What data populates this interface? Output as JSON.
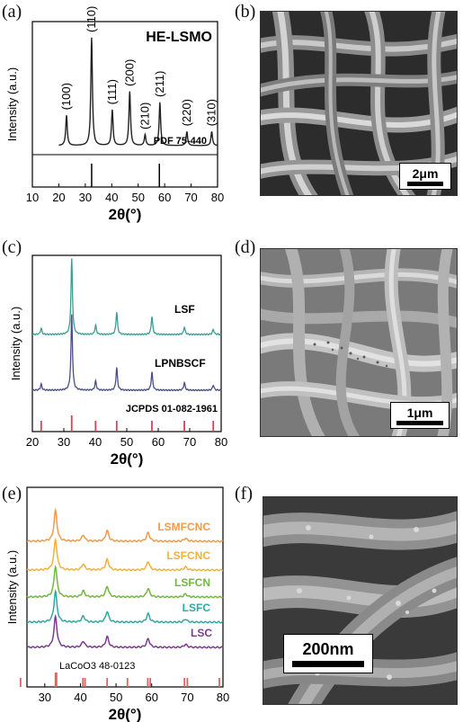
{
  "panels": {
    "a": {
      "letter": "(a)"
    },
    "b": {
      "letter": "(b)",
      "scale": "2μm"
    },
    "c": {
      "letter": "(c)"
    },
    "d": {
      "letter": "(d)",
      "scale": "1μm"
    },
    "e": {
      "letter": "(e)"
    },
    "f": {
      "letter": "(f)",
      "scale": "200nm"
    }
  },
  "chart_data": [
    {
      "id": "a",
      "type": "line",
      "title": "HE-LSMO",
      "xlabel": "2θ(°)",
      "ylabel": "Intensity (a.u.)",
      "xlim": [
        10,
        80
      ],
      "xticks": [
        10,
        20,
        30,
        40,
        50,
        60,
        70,
        80
      ],
      "reference_label": "PDF 75-440",
      "reference_lines": [
        32.4,
        58.0
      ],
      "peaks": [
        {
          "x": 22.9,
          "h": 0.28,
          "label": "(100)"
        },
        {
          "x": 32.4,
          "h": 1.0,
          "label": "(110)"
        },
        {
          "x": 40.2,
          "h": 0.33,
          "label": "(111)"
        },
        {
          "x": 46.8,
          "h": 0.5,
          "label": "(200)"
        },
        {
          "x": 52.6,
          "h": 0.1,
          "label": "(210)"
        },
        {
          "x": 58.2,
          "h": 0.4,
          "label": "(211)"
        },
        {
          "x": 68.4,
          "h": 0.13,
          "label": "(220)"
        },
        {
          "x": 77.8,
          "h": 0.13,
          "label": "(310)"
        }
      ],
      "colors": {
        "line": "#222222"
      }
    },
    {
      "id": "c",
      "type": "line",
      "xlabel": "2θ(°)",
      "ylabel": "Intensity (a.u.)",
      "xlim": [
        20,
        80
      ],
      "xticks": [
        20,
        30,
        40,
        50,
        60,
        70,
        80
      ],
      "reference_label": "JCPDS 01-082-1961",
      "reference_lines": [
        22.8,
        32.5,
        40.1,
        46.8,
        58.0,
        68.3,
        77.5
      ],
      "series": [
        {
          "name": "LSF",
          "color": "#3a9e96",
          "peaks": [
            {
              "x": 22.8,
              "h": 0.08
            },
            {
              "x": 32.5,
              "h": 1.0
            },
            {
              "x": 40.1,
              "h": 0.12
            },
            {
              "x": 46.8,
              "h": 0.3
            },
            {
              "x": 58.0,
              "h": 0.24
            },
            {
              "x": 68.3,
              "h": 0.1
            },
            {
              "x": 77.5,
              "h": 0.07
            }
          ]
        },
        {
          "name": "LPNBSCF",
          "color": "#4a4e86",
          "peaks": [
            {
              "x": 22.8,
              "h": 0.08
            },
            {
              "x": 32.5,
              "h": 1.0
            },
            {
              "x": 40.1,
              "h": 0.12
            },
            {
              "x": 46.8,
              "h": 0.3
            },
            {
              "x": 58.0,
              "h": 0.24
            },
            {
              "x": 68.3,
              "h": 0.1
            },
            {
              "x": 77.5,
              "h": 0.07
            }
          ]
        }
      ],
      "colors": {
        "reference": "#d9405a"
      }
    },
    {
      "id": "e",
      "type": "line",
      "xlabel": "2θ(°)",
      "ylabel": "Intensity (a.u.)",
      "xlim": [
        25,
        80
      ],
      "xticks": [
        30,
        40,
        50,
        60,
        70,
        80
      ],
      "reference_label": "LaCoO3 48-0123",
      "reference_lines": [
        23.2,
        33.0,
        33.3,
        40.7,
        41.3,
        47.5,
        53.2,
        58.9,
        59.6,
        69.2,
        70.0,
        79.0
      ],
      "series": [
        {
          "name": "LSMFCNC",
          "color": "#f29a4a",
          "peaks": [
            {
              "x": 33.0,
              "h": 1.0
            },
            {
              "x": 40.8,
              "h": 0.2
            },
            {
              "x": 47.5,
              "h": 0.35
            },
            {
              "x": 59.0,
              "h": 0.28
            },
            {
              "x": 69.5,
              "h": 0.1
            }
          ]
        },
        {
          "name": "LSFCNC",
          "color": "#f2b23a",
          "peaks": [
            {
              "x": 33.0,
              "h": 1.0
            },
            {
              "x": 40.8,
              "h": 0.2
            },
            {
              "x": 47.5,
              "h": 0.35
            },
            {
              "x": 59.0,
              "h": 0.28
            },
            {
              "x": 69.5,
              "h": 0.1
            }
          ]
        },
        {
          "name": "LSFCN",
          "color": "#72b840",
          "peaks": [
            {
              "x": 33.0,
              "h": 1.0
            },
            {
              "x": 40.8,
              "h": 0.2
            },
            {
              "x": 47.5,
              "h": 0.35
            },
            {
              "x": 59.0,
              "h": 0.28
            },
            {
              "x": 69.5,
              "h": 0.1
            }
          ]
        },
        {
          "name": "LSFC",
          "color": "#2fa8a3",
          "peaks": [
            {
              "x": 33.0,
              "h": 1.0
            },
            {
              "x": 40.8,
              "h": 0.2
            },
            {
              "x": 47.5,
              "h": 0.35
            },
            {
              "x": 59.0,
              "h": 0.28
            },
            {
              "x": 69.5,
              "h": 0.1
            }
          ]
        },
        {
          "name": "LSC",
          "color": "#7b3b8e",
          "peaks": [
            {
              "x": 33.0,
              "h": 1.0
            },
            {
              "x": 40.8,
              "h": 0.2
            },
            {
              "x": 47.5,
              "h": 0.35
            },
            {
              "x": 59.0,
              "h": 0.28
            },
            {
              "x": 69.5,
              "h": 0.1
            }
          ]
        }
      ],
      "colors": {
        "reference": "#e0645e"
      }
    }
  ]
}
